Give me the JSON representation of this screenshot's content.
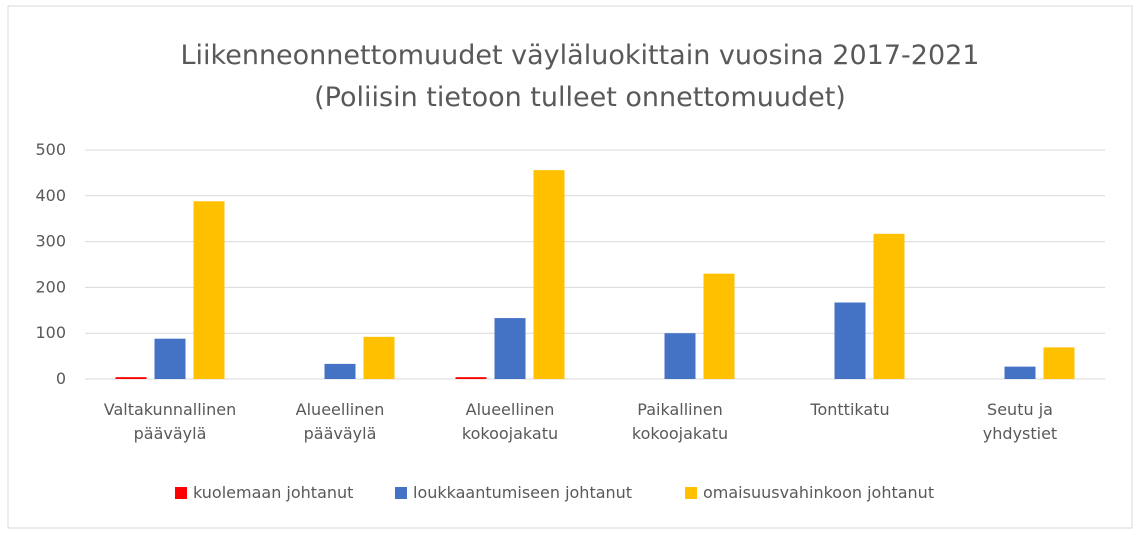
{
  "chart_data": {
    "type": "bar",
    "title": "Liikenneonnettomuudet  väyläluokittain vuosina 2017-2021\n(Poliisin tietoon tulleet onnettomuudet)",
    "categories": [
      "Valtakunnallinen\npääväylä",
      "Alueellinen\npääväylä",
      "Alueellinen\nkokoojakatu",
      "Paikallinen\nkokoojakatu",
      "Tonttikatu",
      "Seutu ja\nyhdystiet"
    ],
    "series": [
      {
        "name": "kuolemaan johtanut",
        "color": "#ff0000",
        "values": [
          4,
          0,
          4,
          0,
          0,
          0
        ]
      },
      {
        "name": "loukkaantumiseen johtanut",
        "color": "#4472c4",
        "values": [
          88,
          33,
          133,
          100,
          167,
          27
        ]
      },
      {
        "name": "omaisuusvahinkoon johtanut",
        "color": "#ffc000",
        "values": [
          388,
          92,
          456,
          230,
          317,
          69
        ]
      }
    ],
    "ylim": [
      0,
      500
    ],
    "yticks": [
      0,
      100,
      200,
      300,
      400,
      500
    ],
    "grid": true,
    "legend": "bottom"
  }
}
